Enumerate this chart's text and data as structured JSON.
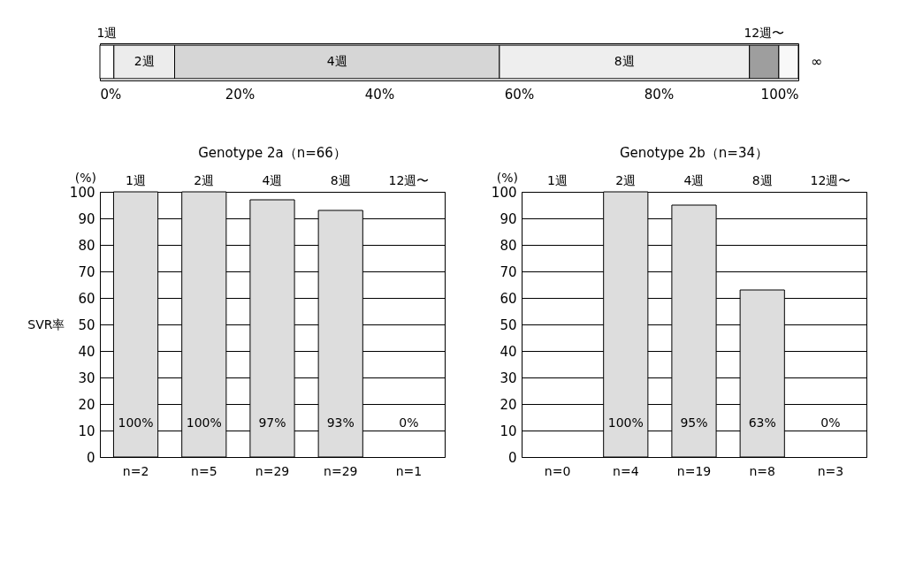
{
  "chart_data": [
    {
      "type": "bar",
      "orientation": "horizontal",
      "stacked": true,
      "categories": [
        null
      ],
      "series": [
        {
          "name": "1週",
          "color": "#ffffff",
          "values": [
            2.0
          ]
        },
        {
          "name": "2週",
          "color": "#ececec",
          "values": [
            8.7
          ]
        },
        {
          "name": "4週",
          "color": "#d6d6d6",
          "values": [
            46.5
          ]
        },
        {
          "name": "8週",
          "color": "#eeeeee",
          "values": [
            35.8
          ]
        },
        {
          "name": "12週〜",
          "color": "#9e9e9e",
          "values": [
            4.2
          ]
        },
        {
          "name": "∞",
          "color": "#f8f8f8",
          "values": [
            2.8
          ]
        }
      ],
      "xlim": [
        0,
        100
      ],
      "xticks": [
        {
          "value": 0,
          "label": "0%"
        },
        {
          "value": 20,
          "label": "20%"
        },
        {
          "value": 40,
          "label": "40%"
        },
        {
          "value": 60,
          "label": "60%"
        },
        {
          "value": 80,
          "label": "80%"
        },
        {
          "value": 100,
          "label": "100%"
        }
      ]
    },
    {
      "type": "bar",
      "title": "Genotype 2a（n=66）",
      "ylabel": "SVR率",
      "categories": [
        "1週",
        "2週",
        "4週",
        "8週",
        "12週〜"
      ],
      "values": [
        100,
        100,
        97,
        93,
        0
      ],
      "value_labels": [
        "100%",
        "100%",
        "97%",
        "93%",
        "0%"
      ],
      "color": "#dddddd",
      "ylim": [
        0,
        100
      ],
      "yticks": [
        0,
        10,
        20,
        30,
        40,
        50,
        60,
        70,
        80,
        90,
        100
      ],
      "grid": "y",
      "annotations": [
        "(%)",
        "n=2",
        "n=5",
        "n=29",
        "n=29",
        "n=1"
      ]
    },
    {
      "type": "bar",
      "title": "Genotype 2b（n=34）",
      "categories": [
        "1週",
        "2週",
        "4週",
        "8週",
        "12週〜"
      ],
      "values": [
        null,
        100,
        95,
        63,
        0
      ],
      "value_labels": [
        null,
        "100%",
        "95%",
        "63%",
        "0%"
      ],
      "color": "#dddddd",
      "ylim": [
        0,
        100
      ],
      "yticks": [
        0,
        10,
        20,
        30,
        40,
        50,
        60,
        70,
        80,
        90,
        100
      ],
      "grid": "y",
      "annotations": [
        "(%)",
        "n=0",
        "n=4",
        "n=19",
        "n=8",
        "n=3"
      ]
    }
  ]
}
